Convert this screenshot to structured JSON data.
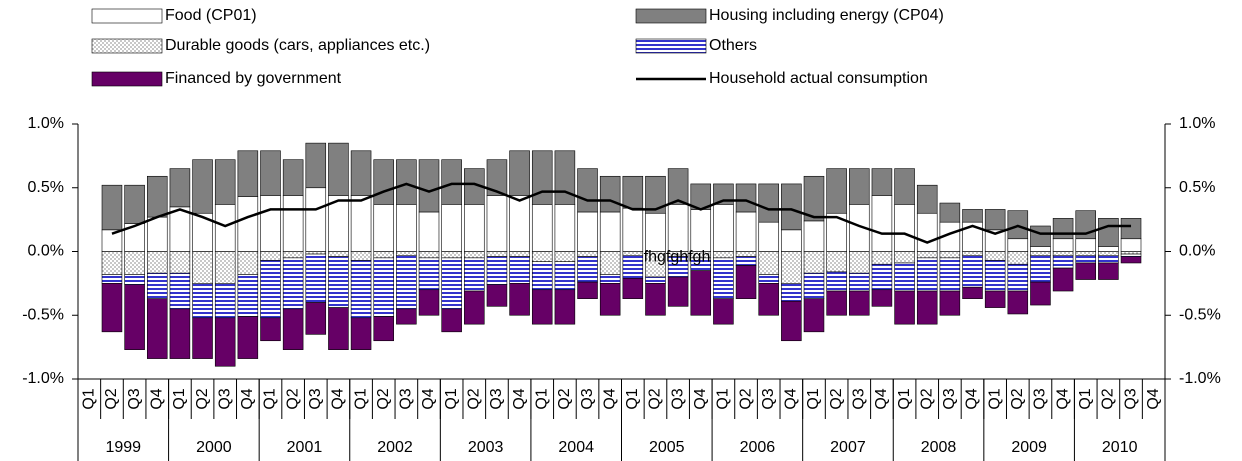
{
  "chart_data": {
    "type": "bar",
    "stacked": true,
    "categories": [
      "Q1",
      "Q2",
      "Q3",
      "Q4",
      "Q1",
      "Q2",
      "Q3",
      "Q4",
      "Q1",
      "Q2",
      "Q3",
      "Q4",
      "Q1",
      "Q2",
      "Q3",
      "Q4",
      "Q1",
      "Q2",
      "Q3",
      "Q4",
      "Q1",
      "Q2",
      "Q3",
      "Q4",
      "Q1",
      "Q2",
      "Q3",
      "Q4",
      "Q1",
      "Q2",
      "Q3",
      "Q4",
      "Q1",
      "Q2",
      "Q3",
      "Q4",
      "Q1",
      "Q2",
      "Q3",
      "Q4",
      "Q1",
      "Q2",
      "Q3",
      "Q4",
      "Q1",
      "Q2",
      "Q3",
      "Q4"
    ],
    "groups": [
      "1999",
      "2000",
      "2001",
      "2002",
      "2003",
      "2004",
      "2005",
      "2006",
      "2007",
      "2008",
      "2009",
      "2010"
    ],
    "series": [
      {
        "name": "Food (CP01)",
        "color": "#ffffff",
        "pattern": "solid",
        "values": [
          null,
          0.17,
          0.22,
          0.27,
          0.35,
          0.3,
          0.37,
          0.43,
          0.44,
          0.44,
          0.5,
          0.44,
          0.44,
          0.37,
          0.37,
          0.31,
          0.37,
          0.37,
          0.44,
          0.44,
          0.37,
          0.37,
          0.31,
          0.31,
          0.34,
          0.3,
          0.37,
          0.33,
          0.37,
          0.31,
          0.23,
          0.17,
          0.24,
          0.3,
          0.37,
          0.44,
          0.37,
          0.3,
          0.23,
          0.23,
          0.17,
          0.1,
          0.04,
          0.1,
          0.1,
          0.04,
          0.1,
          null
        ]
      },
      {
        "name": "Housing including energy (CP04)",
        "color": "#808080",
        "pattern": "solid",
        "values": [
          null,
          0.35,
          0.3,
          0.32,
          0.3,
          0.42,
          0.35,
          0.36,
          0.35,
          0.28,
          0.35,
          0.41,
          0.35,
          0.35,
          0.35,
          0.41,
          0.35,
          0.28,
          0.28,
          0.35,
          0.42,
          0.42,
          0.34,
          0.28,
          0.25,
          0.29,
          0.28,
          0.2,
          0.16,
          0.22,
          0.3,
          0.36,
          0.35,
          0.35,
          0.28,
          0.21,
          0.28,
          0.22,
          0.15,
          0.1,
          0.16,
          0.22,
          0.16,
          0.16,
          0.22,
          0.22,
          0.16,
          null
        ]
      },
      {
        "name": "Durable goods (cars, appliances etc.)",
        "color": "#a0a0a0",
        "pattern": "dots",
        "values": [
          null,
          -0.18,
          -0.18,
          -0.17,
          -0.17,
          -0.25,
          -0.25,
          -0.18,
          -0.07,
          -0.05,
          -0.02,
          -0.04,
          -0.07,
          -0.05,
          -0.03,
          -0.05,
          -0.05,
          -0.05,
          -0.04,
          -0.04,
          -0.08,
          -0.08,
          -0.04,
          -0.18,
          -0.03,
          -0.2,
          -0.04,
          -0.05,
          -0.05,
          -0.04,
          -0.18,
          -0.25,
          -0.17,
          -0.16,
          -0.17,
          -0.1,
          -0.09,
          -0.05,
          -0.05,
          -0.03,
          -0.07,
          -0.1,
          -0.03,
          -0.03,
          -0.03,
          -0.03,
          -0.02,
          null
        ]
      },
      {
        "name": "Others",
        "color": "#3333cc",
        "pattern": "stripes",
        "values": [
          null,
          -0.07,
          -0.08,
          -0.2,
          -0.28,
          -0.27,
          -0.27,
          -0.33,
          -0.45,
          -0.4,
          -0.38,
          -0.4,
          -0.45,
          -0.46,
          -0.42,
          -0.25,
          -0.4,
          -0.26,
          -0.22,
          -0.21,
          -0.22,
          -0.22,
          -0.2,
          -0.07,
          -0.18,
          -0.05,
          -0.16,
          -0.1,
          -0.32,
          -0.07,
          -0.07,
          -0.14,
          -0.2,
          -0.15,
          -0.14,
          -0.2,
          -0.22,
          -0.26,
          -0.26,
          -0.25,
          -0.24,
          -0.21,
          -0.21,
          -0.1,
          -0.06,
          -0.06,
          -0.02,
          null
        ]
      },
      {
        "name": "Financed by government",
        "color": "#660066",
        "pattern": "solid",
        "values": [
          null,
          -0.38,
          -0.51,
          -0.47,
          -0.39,
          -0.32,
          -0.38,
          -0.33,
          -0.18,
          -0.32,
          -0.25,
          -0.33,
          -0.25,
          -0.19,
          -0.12,
          -0.2,
          -0.18,
          -0.26,
          -0.17,
          -0.25,
          -0.27,
          -0.27,
          -0.13,
          -0.25,
          -0.16,
          -0.25,
          -0.23,
          -0.35,
          -0.2,
          -0.26,
          -0.25,
          -0.31,
          -0.26,
          -0.19,
          -0.19,
          -0.13,
          -0.26,
          -0.26,
          -0.19,
          -0.09,
          -0.13,
          -0.18,
          -0.18,
          -0.18,
          -0.13,
          -0.13,
          -0.05,
          null
        ]
      },
      {
        "name": "Household actual consumption",
        "color": "#000000",
        "type": "line",
        "values": [
          null,
          0.14,
          0.2,
          0.27,
          0.33,
          0.27,
          0.2,
          0.27,
          0.33,
          0.33,
          0.33,
          0.4,
          0.4,
          0.47,
          0.53,
          0.47,
          0.53,
          0.53,
          0.47,
          0.4,
          0.47,
          0.47,
          0.4,
          0.4,
          0.33,
          0.33,
          0.4,
          0.33,
          0.4,
          0.4,
          0.33,
          0.33,
          0.27,
          0.27,
          0.2,
          0.14,
          0.14,
          0.07,
          0.14,
          0.2,
          0.14,
          0.2,
          0.14,
          0.14,
          0.14,
          0.2,
          0.2,
          null
        ]
      }
    ],
    "annotation": "fhgfghfgh",
    "ylim": [
      -1.0,
      1.0
    ],
    "yticks": [
      {
        "value": -1.0,
        "label": "-1.0%"
      },
      {
        "value": -0.5,
        "label": "-0.5%"
      },
      {
        "value": 0.0,
        "label": "0.0%"
      },
      {
        "value": 0.5,
        "label": "0.5%"
      },
      {
        "value": 1.0,
        "label": "1.0%"
      }
    ],
    "y2lim": [
      -1.0,
      1.0
    ],
    "y2ticks": [
      {
        "value": -1.0,
        "label": "-1.0%"
      },
      {
        "value": -0.5,
        "label": "-0.5%"
      },
      {
        "value": 0.0,
        "label": "0.0%"
      },
      {
        "value": 0.5,
        "label": "0.5%"
      },
      {
        "value": 1.0,
        "label": "1.0%"
      }
    ],
    "grid": false,
    "legend": "top"
  }
}
